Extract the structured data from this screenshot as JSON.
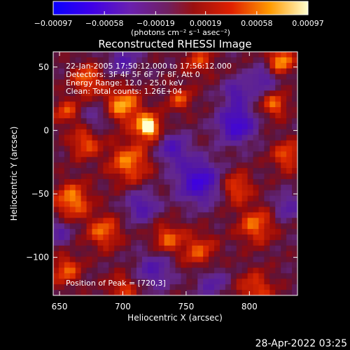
{
  "chart_data": {
    "type": "heatmap",
    "title": "Reconstructed RHESSI Image",
    "xlabel": "Heliocentric X (arcsec)",
    "ylabel": "Heliocentric Y (arcsec)",
    "xlim": [
      645,
      838
    ],
    "ylim": [
      -130,
      62
    ],
    "x_ticks": [
      650,
      700,
      750,
      800
    ],
    "y_ticks": [
      50,
      0,
      -50,
      -100
    ],
    "x_tick_labels": [
      "650",
      "700",
      "750",
      "800"
    ],
    "y_tick_labels": [
      "50",
      "0",
      "−50",
      "−100"
    ],
    "colorbar": {
      "ticks": [
        -0.00097,
        -0.00058,
        -0.00019,
        0.00019,
        0.00058,
        0.00097
      ],
      "tick_labels": [
        "−0.00097",
        "−0.00058",
        "−0.00019",
        "0.00019",
        "0.00058",
        "0.00097"
      ],
      "units_label": "(photons cm⁻² s⁻¹ asec⁻²)",
      "range": [
        -0.00097,
        0.00097
      ]
    },
    "annotations": {
      "time_range": "22-Jan-2005 17:50:12.000 to 17:56:12.000",
      "detectors": "Detectors: 3F 4F 5F 6F 7F 8F, Att 0",
      "energy": "Energy Range: 12.0 - 25.0 keV",
      "clean": "Clean: Total counts: 1.26E+04",
      "peak": "Position of Peak = [720,3]"
    },
    "peak": {
      "x": 720,
      "y": 3
    },
    "grid": false,
    "legend": "colorbar-top"
  },
  "footer": {
    "date": "28-Apr-2022 03:25"
  }
}
